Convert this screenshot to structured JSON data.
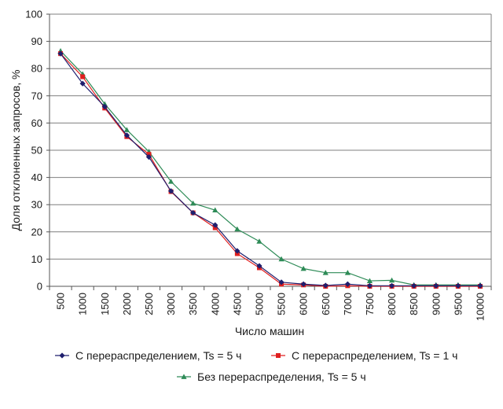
{
  "chart_data": {
    "type": "line",
    "xlabel": "Число машин",
    "ylabel": "Доля отклоненных запросов, %",
    "ylim": [
      0,
      100
    ],
    "yticks": [
      0,
      10,
      20,
      30,
      40,
      50,
      60,
      70,
      80,
      90,
      100
    ],
    "grid": "horizontal",
    "legend_position": "bottom",
    "categories": [
      "500",
      "1000",
      "1500",
      "2000",
      "2500",
      "3000",
      "3500",
      "4000",
      "4500",
      "5000",
      "5500",
      "6000",
      "6500",
      "7000",
      "7500",
      "8000",
      "8500",
      "9000",
      "9500",
      "10000"
    ],
    "series": [
      {
        "name": "С перераспределением, Ts = 5 ч",
        "color": "#1f1f6e",
        "marker": "diamond",
        "values": [
          85.5,
          74.5,
          66.0,
          55.5,
          47.5,
          35.0,
          27.0,
          22.5,
          13.0,
          7.5,
          1.5,
          0.8,
          0.3,
          0.8,
          0.2,
          0.2,
          0.2,
          0.2,
          0.2,
          0.2
        ]
      },
      {
        "name": "С перераспределением, Ts = 1 ч",
        "color": "#e02020",
        "marker": "square",
        "values": [
          85.5,
          77.0,
          65.5,
          55.0,
          48.5,
          34.8,
          27.0,
          21.5,
          12.0,
          6.8,
          0.8,
          0.5,
          0.0,
          0.2,
          0.0,
          0.0,
          0.0,
          0.0,
          0.0,
          0.0
        ]
      },
      {
        "name": "Без перераспределения, Ts = 5 ч",
        "color": "#2e8b57",
        "marker": "triangle",
        "values": [
          86.5,
          78.0,
          67.0,
          57.5,
          49.5,
          38.5,
          30.5,
          28.0,
          21.0,
          16.5,
          10.0,
          6.5,
          5.0,
          5.0,
          2.0,
          2.2,
          0.5,
          0.5,
          0.5,
          0.5
        ]
      }
    ]
  }
}
